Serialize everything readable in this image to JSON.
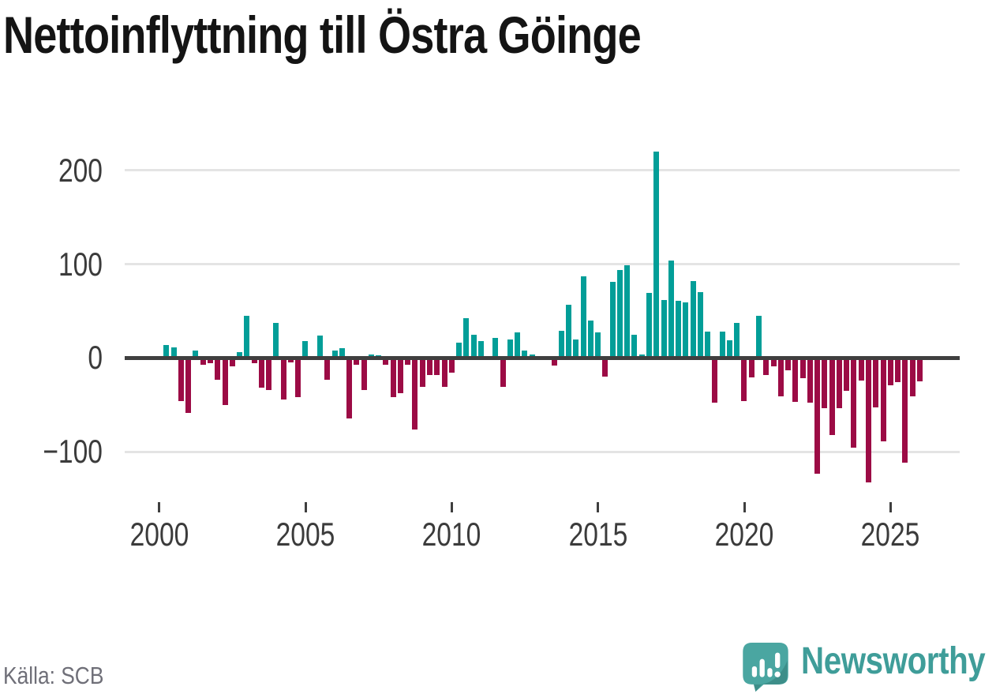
{
  "title": "Nettoinflyttning till Östra Göinge",
  "source": "Källa: SCB",
  "branding": {
    "name": "Newsworthy"
  },
  "colors": {
    "positive_bar": "#029E98",
    "negative_bar": "#9C0B45",
    "zero_line": "#3f3f3f",
    "gridline": "#e4e4e4",
    "axis_text": "#3b3b3b",
    "title_text": "#141414",
    "source_text": "#6F6F78",
    "brand_teal": "#3F9D99",
    "brand_icon": "#4AA6A1",
    "brand_icon_shade": "#3D8E89"
  },
  "chart_data": {
    "type": "bar",
    "title": "Nettoinflyttning till Östra Göinge",
    "xlabel": "",
    "ylabel": "",
    "grid": "horizontal",
    "legend": "none",
    "ylim": [
      -150,
      235
    ],
    "yticks": [
      {
        "label": "200",
        "value": 200
      },
      {
        "label": "100",
        "value": 100
      },
      {
        "label": "0",
        "value": 0
      },
      {
        "label": "−100",
        "value": -100
      }
    ],
    "xticks": [
      {
        "label": "2000",
        "year": 2000
      },
      {
        "label": "2005",
        "year": 2005
      },
      {
        "label": "2010",
        "year": 2010
      },
      {
        "label": "2015",
        "year": 2015
      },
      {
        "label": "2020",
        "year": 2020
      },
      {
        "label": "2025",
        "year": 2025
      }
    ],
    "x": [
      "2000 Q1",
      "2000 Q2",
      "2000 Q3",
      "2000 Q4",
      "2001 Q1",
      "2001 Q2",
      "2001 Q3",
      "2001 Q4",
      "2002 Q1",
      "2002 Q2",
      "2002 Q3",
      "2002 Q4",
      "2003 Q1",
      "2003 Q2",
      "2003 Q3",
      "2003 Q4",
      "2004 Q1",
      "2004 Q2",
      "2004 Q3",
      "2004 Q4",
      "2005 Q1",
      "2005 Q2",
      "2005 Q3",
      "2005 Q4",
      "2006 Q1",
      "2006 Q2",
      "2006 Q3",
      "2006 Q4",
      "2007 Q1",
      "2007 Q2",
      "2007 Q3",
      "2007 Q4",
      "2008 Q1",
      "2008 Q2",
      "2008 Q3",
      "2008 Q4",
      "2009 Q1",
      "2009 Q2",
      "2009 Q3",
      "2009 Q4",
      "2010 Q1",
      "2010 Q2",
      "2010 Q3",
      "2010 Q4",
      "2011 Q1",
      "2011 Q2",
      "2011 Q3",
      "2011 Q4",
      "2012 Q1",
      "2012 Q2",
      "2012 Q3",
      "2012 Q4",
      "2013 Q1",
      "2013 Q2",
      "2013 Q3",
      "2013 Q4",
      "2014 Q1",
      "2014 Q2",
      "2014 Q3",
      "2014 Q4",
      "2015 Q1",
      "2015 Q2",
      "2015 Q3",
      "2015 Q4",
      "2016 Q1",
      "2016 Q2",
      "2016 Q3",
      "2016 Q4",
      "2017 Q1",
      "2017 Q2",
      "2017 Q3",
      "2017 Q4",
      "2018 Q1",
      "2018 Q2",
      "2018 Q3",
      "2018 Q4",
      "2019 Q1",
      "2019 Q2",
      "2019 Q3",
      "2019 Q4",
      "2020 Q1",
      "2020 Q2",
      "2020 Q3",
      "2020 Q4",
      "2021 Q1",
      "2021 Q2",
      "2021 Q3",
      "2021 Q4",
      "2022 Q1",
      "2022 Q2",
      "2022 Q3",
      "2022 Q4",
      "2023 Q1",
      "2023 Q2",
      "2023 Q3",
      "2023 Q4",
      "2024 Q1",
      "2024 Q2",
      "2024 Q3",
      "2024 Q4",
      "2025 Q1",
      "2025 Q2",
      "2025 Q3",
      "2025 Q4"
    ],
    "values": [
      14,
      11,
      -46,
      -59,
      8,
      -7,
      -6,
      -23,
      -50,
      -9,
      6,
      45,
      -6,
      -32,
      -34,
      37,
      -44,
      -5,
      -42,
      18,
      0,
      24,
      -23,
      8,
      10,
      -65,
      -7,
      -34,
      4,
      3,
      -7,
      -42,
      -38,
      -7,
      -76,
      -31,
      -18,
      -18,
      -31,
      -16,
      16,
      42,
      25,
      18,
      0,
      21,
      -31,
      20,
      27,
      8,
      4,
      0,
      0,
      -8,
      29,
      57,
      20,
      87,
      40,
      27,
      -20,
      81,
      94,
      99,
      25,
      4,
      69,
      220,
      62,
      104,
      61,
      59,
      82,
      70,
      28,
      -48,
      28,
      19,
      37,
      -46,
      -21,
      45,
      -18,
      -9,
      -41,
      -13,
      -47,
      -22,
      -48,
      -124,
      -54,
      -82,
      -54,
      -35,
      -96,
      -24,
      -133,
      -53,
      -89,
      -29,
      -26,
      -112,
      -41,
      -25
    ]
  }
}
